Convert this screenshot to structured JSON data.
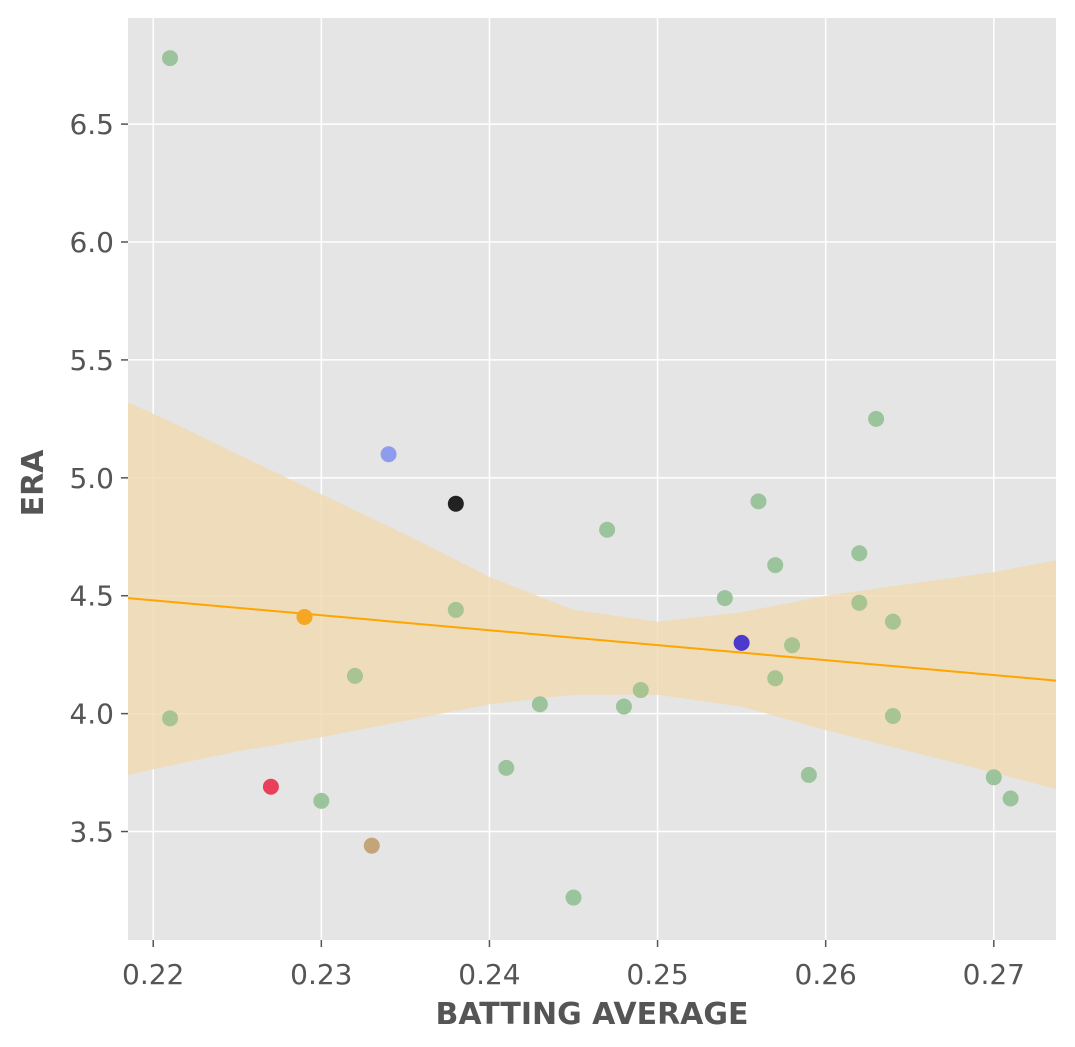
{
  "chart_data": {
    "type": "scatter",
    "title": "",
    "xlabel": "BATTING AVERAGE",
    "ylabel": "ERA",
    "xlim": [
      0.2185,
      0.2737
    ],
    "ylim": [
      3.04,
      6.95
    ],
    "grid": true,
    "x_ticks": [
      0.22,
      0.23,
      0.24,
      0.25,
      0.26,
      0.27
    ],
    "x_tick_labels": [
      "0.22",
      "0.23",
      "0.24",
      "0.25",
      "0.26",
      "0.27"
    ],
    "y_ticks": [
      3.5,
      4.0,
      4.5,
      5.0,
      5.5,
      6.0,
      6.5
    ],
    "y_tick_labels": [
      "3.5",
      "4.0",
      "4.5",
      "5.0",
      "5.5",
      "6.0",
      "6.5"
    ],
    "colors": {
      "background": "#E5E5E5",
      "grid": "#FFFFFF",
      "regression_line": "#FFA500",
      "confidence_band": "#F0D9B0",
      "default_point": "#8FBC8F"
    },
    "points": [
      {
        "x": 0.221,
        "y": 6.78,
        "color": "#9CC49C"
      },
      {
        "x": 0.221,
        "y": 3.98,
        "color": "#A8C490"
      },
      {
        "x": 0.227,
        "y": 3.69,
        "color": "#E8405A"
      },
      {
        "x": 0.229,
        "y": 4.41,
        "color": "#F5A623"
      },
      {
        "x": 0.23,
        "y": 3.63,
        "color": "#9CC49C"
      },
      {
        "x": 0.232,
        "y": 4.16,
        "color": "#A8C490"
      },
      {
        "x": 0.233,
        "y": 3.44,
        "color": "#C4A478"
      },
      {
        "x": 0.234,
        "y": 5.1,
        "color": "#8E9CEE"
      },
      {
        "x": 0.238,
        "y": 4.89,
        "color": "#222222"
      },
      {
        "x": 0.238,
        "y": 4.44,
        "color": "#A8C490"
      },
      {
        "x": 0.241,
        "y": 3.77,
        "color": "#9CC49C"
      },
      {
        "x": 0.243,
        "y": 4.04,
        "color": "#9CC49C"
      },
      {
        "x": 0.245,
        "y": 3.22,
        "color": "#9CC49C"
      },
      {
        "x": 0.247,
        "y": 4.78,
        "color": "#9CC49C"
      },
      {
        "x": 0.248,
        "y": 4.03,
        "color": "#9CC49C"
      },
      {
        "x": 0.249,
        "y": 4.1,
        "color": "#A8C490"
      },
      {
        "x": 0.254,
        "y": 4.49,
        "color": "#9CC49C"
      },
      {
        "x": 0.255,
        "y": 4.3,
        "color": "#4B3ACC"
      },
      {
        "x": 0.256,
        "y": 4.9,
        "color": "#9CC49C"
      },
      {
        "x": 0.257,
        "y": 4.63,
        "color": "#9CC49C"
      },
      {
        "x": 0.257,
        "y": 4.15,
        "color": "#A8C490"
      },
      {
        "x": 0.258,
        "y": 4.29,
        "color": "#A8C490"
      },
      {
        "x": 0.259,
        "y": 3.74,
        "color": "#9CC49C"
      },
      {
        "x": 0.262,
        "y": 4.68,
        "color": "#9CC49C"
      },
      {
        "x": 0.262,
        "y": 4.47,
        "color": "#A8C490"
      },
      {
        "x": 0.263,
        "y": 5.25,
        "color": "#9CC49C"
      },
      {
        "x": 0.264,
        "y": 4.39,
        "color": "#A8C490"
      },
      {
        "x": 0.264,
        "y": 3.99,
        "color": "#A8C490"
      },
      {
        "x": 0.27,
        "y": 3.73,
        "color": "#9CC49C"
      },
      {
        "x": 0.271,
        "y": 3.64,
        "color": "#9CC49C"
      }
    ],
    "regression": {
      "x": [
        0.2185,
        0.2737
      ],
      "y": [
        4.49,
        4.14
      ]
    },
    "confidence_band": {
      "x": [
        0.2185,
        0.221,
        0.225,
        0.23,
        0.235,
        0.24,
        0.245,
        0.25,
        0.255,
        0.26,
        0.265,
        0.27,
        0.2737
      ],
      "upper": [
        5.32,
        5.24,
        5.1,
        4.93,
        4.76,
        4.58,
        4.44,
        4.39,
        4.43,
        4.5,
        4.55,
        4.6,
        4.65
      ],
      "lower": [
        3.74,
        3.78,
        3.84,
        3.9,
        3.97,
        4.04,
        4.08,
        4.08,
        4.03,
        3.93,
        3.84,
        3.75,
        3.68
      ]
    }
  }
}
